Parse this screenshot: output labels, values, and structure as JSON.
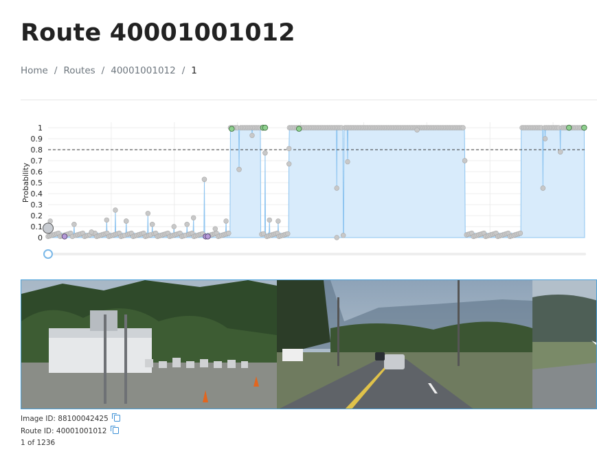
{
  "page": {
    "title": "Route 40001001012"
  },
  "breadcrumb": {
    "home": "Home",
    "routes": "Routes",
    "route_id": "40001001012",
    "current": "1",
    "sep": "/"
  },
  "chart_data": {
    "type": "scatter",
    "ylabel": "Probability",
    "ylim": [
      0,
      1
    ],
    "yticks": [
      "0",
      "0.1",
      "0.2",
      "0.3",
      "0.4",
      "0.5",
      "0.6",
      "0.7",
      "0.8",
      "0.9",
      "1"
    ],
    "threshold": 0.8,
    "grid": true,
    "x_count": 1236,
    "spikes": [
      [
        5,
        0.15
      ],
      [
        60,
        0.12
      ],
      [
        100,
        0.05
      ],
      [
        135,
        0.16
      ],
      [
        155,
        0.25
      ],
      [
        180,
        0.15
      ],
      [
        230,
        0.22
      ],
      [
        240,
        0.12
      ],
      [
        290,
        0.1
      ],
      [
        320,
        0.12
      ],
      [
        335,
        0.18
      ],
      [
        360,
        0.53
      ],
      [
        385,
        0.08
      ],
      [
        410,
        0.15
      ]
    ],
    "high_segments": [
      [
        420,
        490
      ],
      [
        555,
        680
      ],
      [
        682,
        960
      ],
      [
        1090,
        1236
      ]
    ],
    "dips": [
      [
        440,
        0.62
      ],
      [
        470,
        0.93
      ],
      [
        500,
        0.77
      ],
      [
        510,
        0.16
      ],
      [
        530,
        0.15
      ],
      [
        555,
        0.67
      ],
      [
        555,
        0.81
      ],
      [
        665,
        0.0
      ],
      [
        665,
        0.45
      ],
      [
        690,
        0.69
      ],
      [
        850,
        0.98
      ],
      [
        960,
        0.7
      ],
      [
        1140,
        0.45
      ],
      [
        1145,
        0.9
      ],
      [
        1180,
        0.78
      ]
    ],
    "highlights_green": [
      [
        423,
        0.99
      ],
      [
        495,
        1.0
      ],
      [
        500,
        1.0
      ],
      [
        578,
        0.99
      ],
      [
        1200,
        1.0
      ],
      [
        1236,
        1.0
      ]
    ],
    "highlights_purple": [
      [
        38,
        0.01
      ],
      [
        363,
        0.01
      ],
      [
        368,
        0.01
      ]
    ],
    "current_index": 0
  },
  "slider": {
    "value": 0
  },
  "details": {
    "image_label": "Image ID:",
    "image_id": "88100042425",
    "route_label": "Route ID:",
    "route_id": "40001001012",
    "counter": "1 of 1236"
  },
  "colors": {
    "fill": "#d8ebfb",
    "line": "#8dc4f0",
    "point": "#c8c8c8",
    "green": "#8fd08f",
    "purple": "#b59ad8",
    "link": "#3a8fd6"
  }
}
